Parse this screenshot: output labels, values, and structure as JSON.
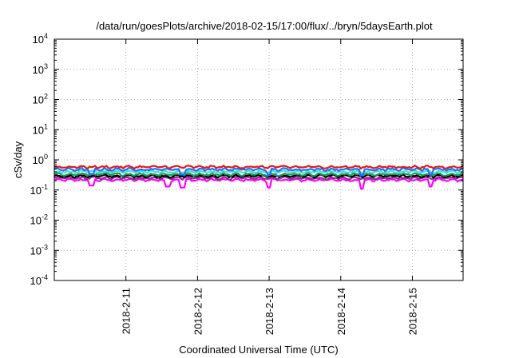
{
  "chart_data": {
    "type": "line",
    "title": "/data/run/goesPlots/archive/2018-02-15/17:00/flux/../bryn/5daysEarth.plot",
    "xlabel": "Coordinated Universal Time (UTC)",
    "ylabel": "cSv/day",
    "yscale": "log",
    "ylim": [
      0.0001,
      10000
    ],
    "y_ticks": [
      {
        "value": 0.0001,
        "base": "10",
        "exp": "-4"
      },
      {
        "value": 0.001,
        "base": "10",
        "exp": "-3"
      },
      {
        "value": 0.01,
        "base": "10",
        "exp": "-2"
      },
      {
        "value": 0.1,
        "base": "10",
        "exp": "-1"
      },
      {
        "value": 1,
        "base": "10",
        "exp": "0"
      },
      {
        "value": 10,
        "base": "10",
        "exp": "1"
      },
      {
        "value": 100,
        "base": "10",
        "exp": "2"
      },
      {
        "value": 1000,
        "base": "10",
        "exp": "3"
      },
      {
        "value": 10000,
        "base": "10",
        "exp": "4"
      }
    ],
    "xlim": [
      "2018-02-10T00:00",
      "2018-02-15T17:00"
    ],
    "x_ticks": [
      {
        "value": "2018-02-11T00:00",
        "label": "2018-2-11"
      },
      {
        "value": "2018-02-12T00:00",
        "label": "2018-2-12"
      },
      {
        "value": "2018-02-13T00:00",
        "label": "2018-2-13"
      },
      {
        "value": "2018-02-14T00:00",
        "label": "2018-2-14"
      },
      {
        "value": "2018-02-15T00:00",
        "label": "2018-2-15"
      }
    ],
    "grid": true,
    "series": [
      {
        "color": "#e41a1c",
        "level": 0.58,
        "dips": []
      },
      {
        "color": "#1f6fff",
        "level": 0.48,
        "dips": [
          {
            "at": "2018-02-10T12:30",
            "to": 0.34
          },
          {
            "at": "2018-02-11T19:00",
            "to": 0.33
          },
          {
            "at": "2018-02-13T00:00",
            "to": 0.32
          },
          {
            "at": "2018-02-14T07:00",
            "to": 0.31
          },
          {
            "at": "2018-02-15T06:00",
            "to": 0.32
          }
        ]
      },
      {
        "color": "#40e0d0",
        "level": 0.4,
        "dips": []
      },
      {
        "color": "#1a9850",
        "level": 0.33,
        "dips": []
      },
      {
        "color": "#000000",
        "level": 0.29,
        "dips": []
      },
      {
        "color": "#8b2d8b",
        "level": 0.25,
        "dips": []
      },
      {
        "color": "#ff00ff",
        "level": 0.215,
        "dips": [
          {
            "at": "2018-02-10T12:30",
            "to": 0.14
          },
          {
            "at": "2018-02-11T14:00",
            "to": 0.13
          },
          {
            "at": "2018-02-11T19:00",
            "to": 0.12
          },
          {
            "at": "2018-02-13T00:00",
            "to": 0.12
          },
          {
            "at": "2018-02-14T07:00",
            "to": 0.11
          },
          {
            "at": "2018-02-15T06:00",
            "to": 0.13
          }
        ]
      }
    ]
  }
}
